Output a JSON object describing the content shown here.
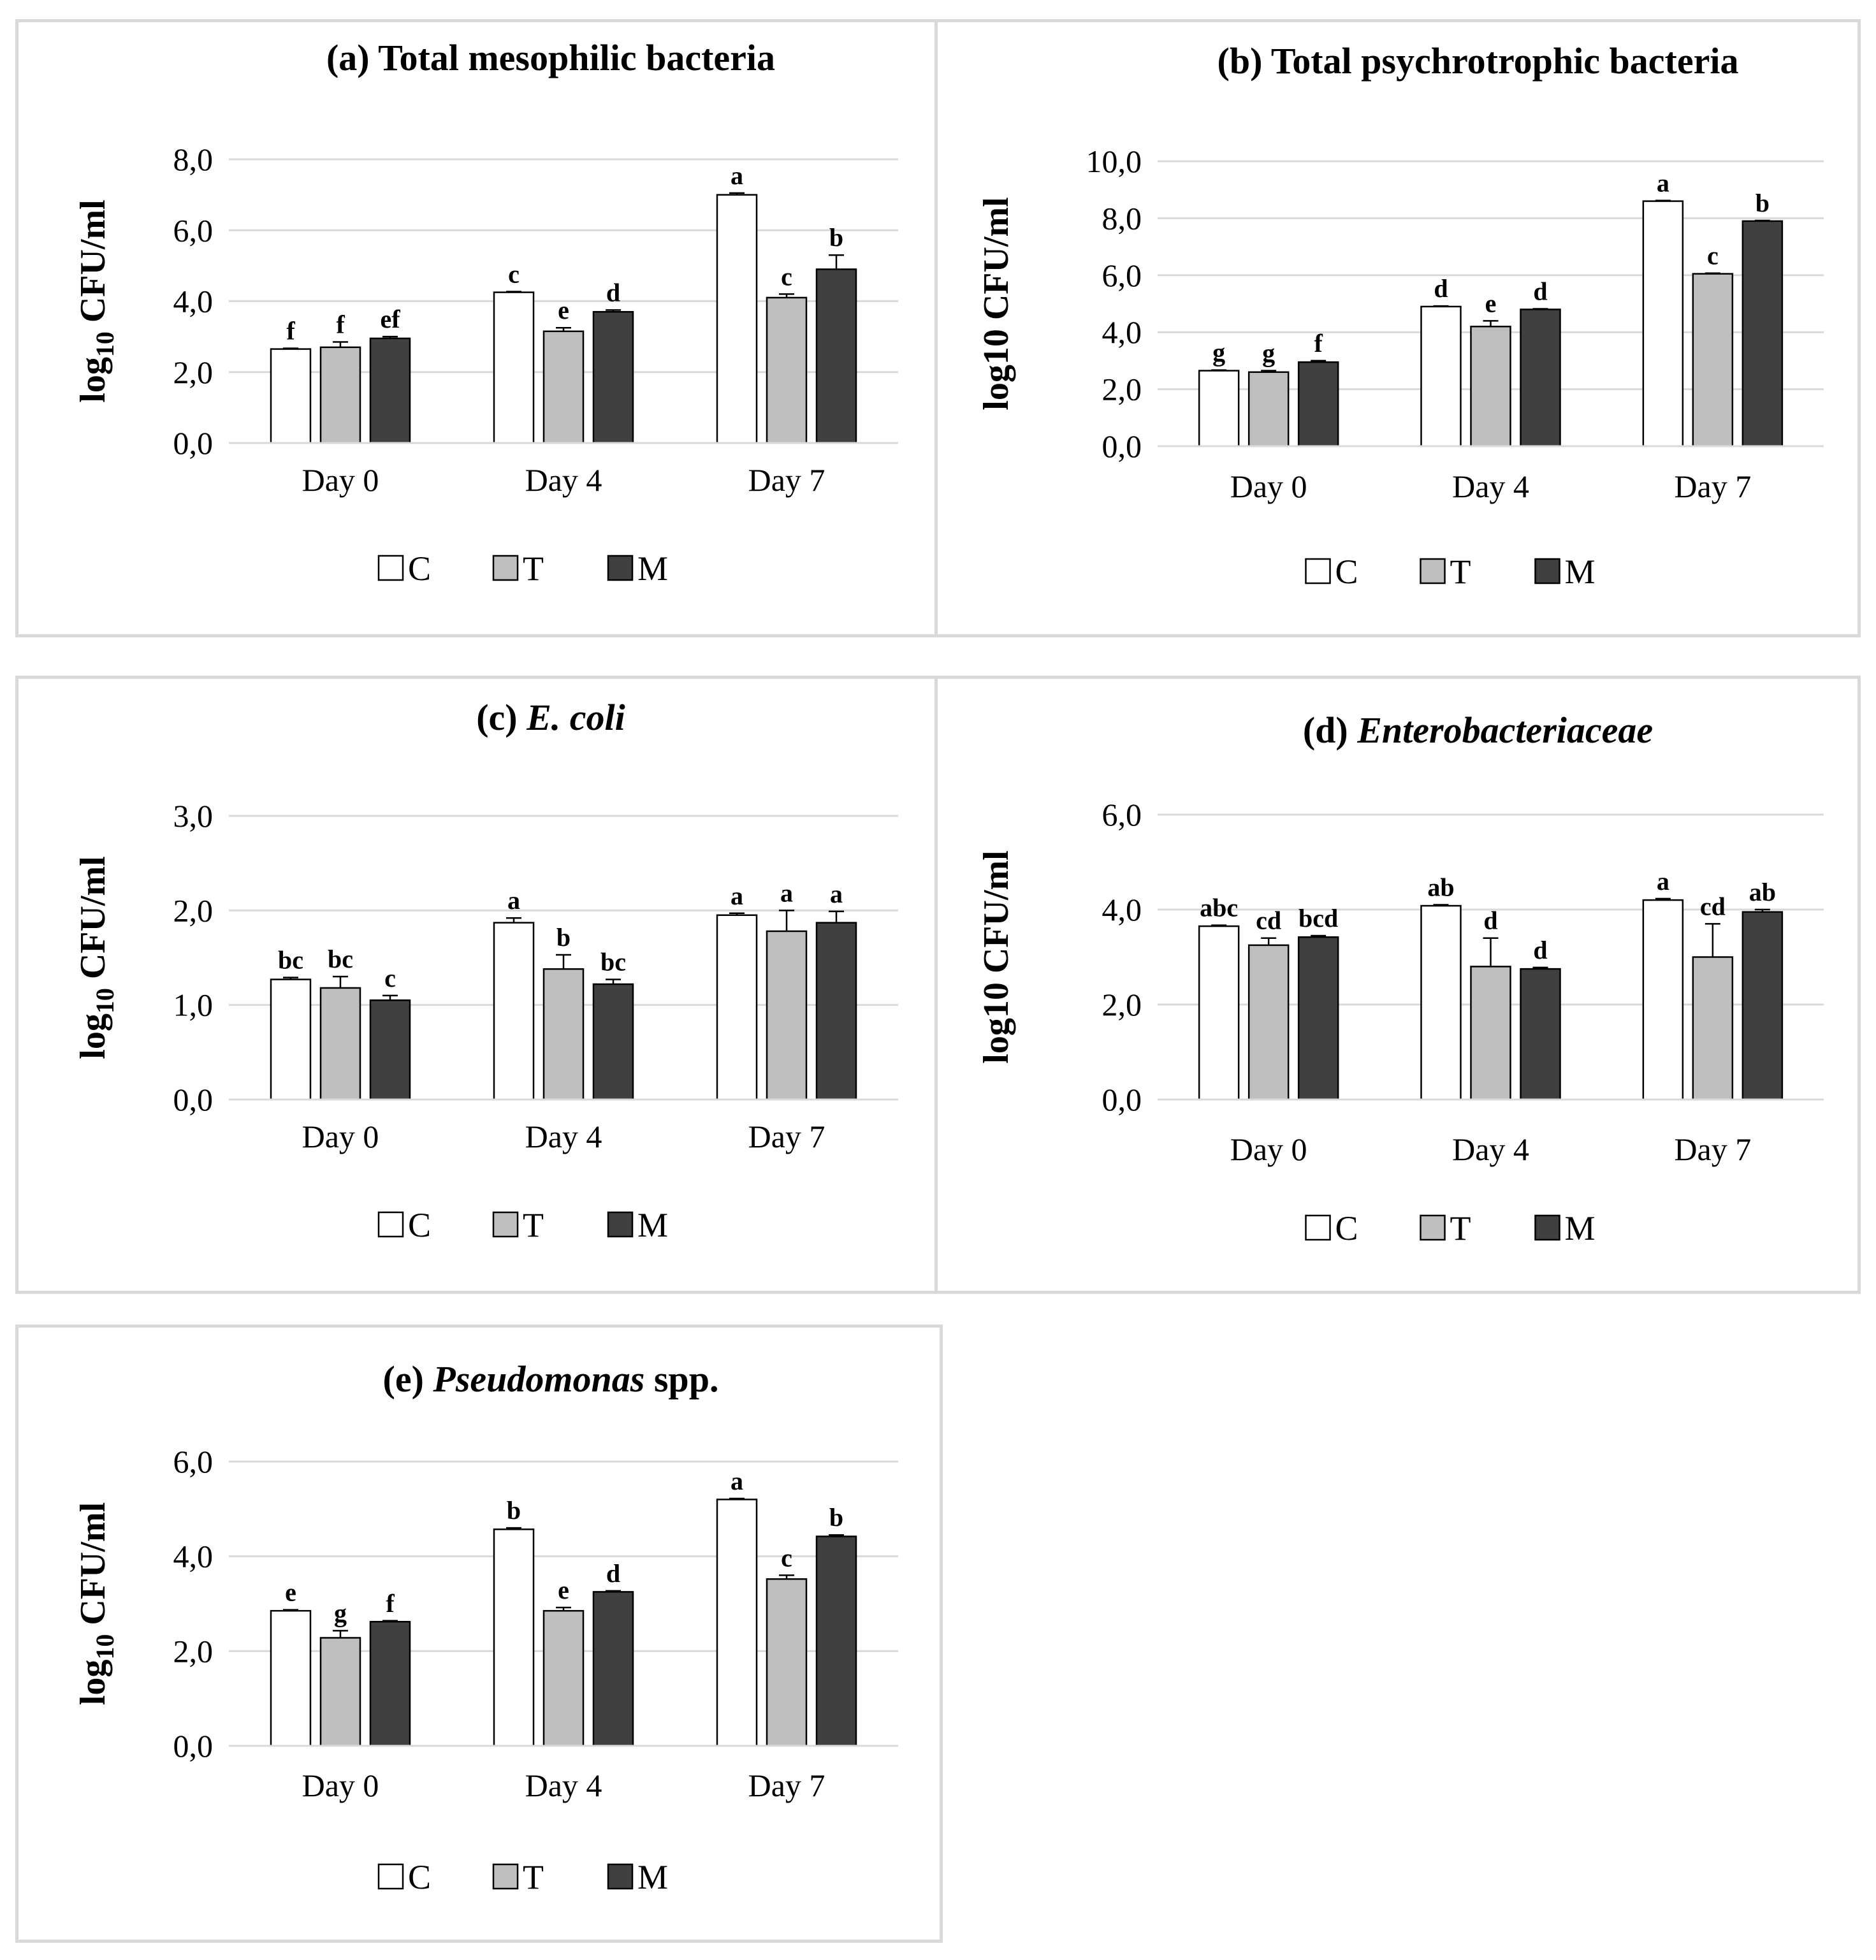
{
  "colors": {
    "C": "#ffffff",
    "T": "#bfbfbf",
    "M": "#404040",
    "grid": "#d9d9d9",
    "bar_stroke": "#000000"
  },
  "chart_data": [
    {
      "type": "bar",
      "title_prefix": "(a) ",
      "title_main": "Total mesophilic bacteria",
      "title_suffix": "",
      "ylabel": "log10 CFU/ml",
      "ylabel_sub": true,
      "ylim": [
        0,
        8
      ],
      "yticks": [
        "0,0",
        "2,0",
        "4,0",
        "6,0",
        "8,0"
      ],
      "ytick_values": [
        0,
        2,
        4,
        6,
        8
      ],
      "categories": [
        "Day 0",
        "Day 4",
        "Day 7"
      ],
      "series": [
        {
          "name": "C",
          "values": [
            2.65,
            4.25,
            7.0
          ],
          "errors": [
            0.02,
            0.02,
            0.05
          ],
          "labels": [
            "f",
            "c",
            "a"
          ]
        },
        {
          "name": "T",
          "values": [
            2.7,
            3.15,
            4.1
          ],
          "errors": [
            0.15,
            0.1,
            0.1
          ],
          "labels": [
            "f",
            "e",
            "c"
          ]
        },
        {
          "name": "M",
          "values": [
            2.95,
            3.7,
            4.9
          ],
          "errors": [
            0.05,
            0.05,
            0.4
          ],
          "labels": [
            "ef",
            "d",
            "b"
          ]
        }
      ],
      "legend": [
        "C",
        "T",
        "M"
      ],
      "grid": true,
      "legend_position": "bottom"
    },
    {
      "type": "bar",
      "title_prefix": "(b) ",
      "title_main": "Total psychrotrophic  bacteria",
      "title_suffix": "",
      "ylabel": "log10 CFU/ml",
      "ylabel_sub": false,
      "ylim": [
        0,
        10
      ],
      "yticks": [
        "0,0",
        "2,0",
        "4,0",
        "6,0",
        "8,0",
        "10,0"
      ],
      "ytick_values": [
        0,
        2,
        4,
        6,
        8,
        10
      ],
      "categories": [
        "Day 0",
        "Day 4",
        "Day 7"
      ],
      "series": [
        {
          "name": "C",
          "values": [
            2.65,
            4.9,
            8.6
          ],
          "errors": [
            0.02,
            0.02,
            0.02
          ],
          "labels": [
            "g",
            "d",
            "a"
          ]
        },
        {
          "name": "T",
          "values": [
            2.6,
            4.2,
            6.05
          ],
          "errors": [
            0.05,
            0.2,
            0.02
          ],
          "labels": [
            "g",
            "e",
            "c"
          ]
        },
        {
          "name": "M",
          "values": [
            2.95,
            4.8,
            7.9
          ],
          "errors": [
            0.05,
            0.02,
            0.02
          ],
          "labels": [
            "f",
            "d",
            "b"
          ]
        }
      ],
      "legend": [
        "C",
        "T",
        "M"
      ],
      "grid": true,
      "legend_position": "bottom"
    },
    {
      "type": "bar",
      "title_prefix": "(c) ",
      "title_main": "E. coli",
      "title_suffix": "",
      "ylabel": "log10 CFU/ml",
      "ylabel_sub": true,
      "ylim": [
        0,
        3
      ],
      "yticks": [
        "0,0",
        "1,0",
        "2,0",
        "3,0"
      ],
      "ytick_values": [
        0,
        1,
        2,
        3
      ],
      "categories": [
        "Day 0",
        "Day 4",
        "Day 7"
      ],
      "series": [
        {
          "name": "C",
          "values": [
            1.27,
            1.87,
            1.95
          ],
          "errors": [
            0.02,
            0.05,
            0.02
          ],
          "labels": [
            "bc",
            "a",
            "a"
          ]
        },
        {
          "name": "T",
          "values": [
            1.18,
            1.38,
            1.78
          ],
          "errors": [
            0.12,
            0.15,
            0.22
          ],
          "labels": [
            "bc",
            "b",
            "a"
          ]
        },
        {
          "name": "M",
          "values": [
            1.05,
            1.22,
            1.87
          ],
          "errors": [
            0.05,
            0.05,
            0.12
          ],
          "labels": [
            "c",
            "bc",
            "a"
          ]
        }
      ],
      "legend": [
        "C",
        "T",
        "M"
      ],
      "grid": true,
      "legend_position": "bottom"
    },
    {
      "type": "bar",
      "title_prefix": "(d) ",
      "title_main": "Enterobacteriaceae",
      "title_suffix": "",
      "ylabel": "log10 CFU/ml",
      "ylabel_sub": false,
      "ylim": [
        0,
        6
      ],
      "yticks": [
        "0,0",
        "2,0",
        "4,0",
        "6,0"
      ],
      "ytick_values": [
        0,
        2,
        4,
        6
      ],
      "categories": [
        "Day 0",
        "Day 4",
        "Day 7"
      ],
      "series": [
        {
          "name": "C",
          "values": [
            3.65,
            4.08,
            4.2
          ],
          "errors": [
            0.02,
            0.02,
            0.03
          ],
          "labels": [
            "abc",
            "ab",
            "a"
          ]
        },
        {
          "name": "T",
          "values": [
            3.25,
            2.8,
            3.0
          ],
          "errors": [
            0.15,
            0.6,
            0.7
          ],
          "labels": [
            "cd",
            "d",
            "cd"
          ]
        },
        {
          "name": "M",
          "values": [
            3.42,
            2.75,
            3.95
          ],
          "errors": [
            0.03,
            0.03,
            0.05
          ],
          "labels": [
            "bcd",
            "d",
            "ab"
          ]
        }
      ],
      "legend": [
        "C",
        "T",
        "M"
      ],
      "grid": true,
      "legend_position": "bottom"
    },
    {
      "type": "bar",
      "title_prefix": "(e) ",
      "title_main": "Pseudomonas",
      "title_suffix": " spp.",
      "ylabel": "log10 CFU/ml",
      "ylabel_sub": true,
      "ylim": [
        0,
        6
      ],
      "yticks": [
        "0,0",
        "2,0",
        "4,0",
        "6,0"
      ],
      "ytick_values": [
        0,
        2,
        4,
        6
      ],
      "categories": [
        "Day 0",
        "Day 4",
        "Day 7"
      ],
      "series": [
        {
          "name": "C",
          "values": [
            2.85,
            4.57,
            5.2
          ],
          "errors": [
            0.02,
            0.03,
            0.02
          ],
          "labels": [
            "e",
            "b",
            "a"
          ]
        },
        {
          "name": "T",
          "values": [
            2.28,
            2.85,
            3.52
          ],
          "errors": [
            0.15,
            0.07,
            0.08
          ],
          "labels": [
            "g",
            "e",
            "c"
          ]
        },
        {
          "name": "M",
          "values": [
            2.62,
            3.25,
            4.42
          ],
          "errors": [
            0.02,
            0.02,
            0.03
          ],
          "labels": [
            "f",
            "d",
            "b"
          ]
        }
      ],
      "legend": [
        "C",
        "T",
        "M"
      ],
      "grid": true,
      "legend_position": "bottom"
    }
  ]
}
